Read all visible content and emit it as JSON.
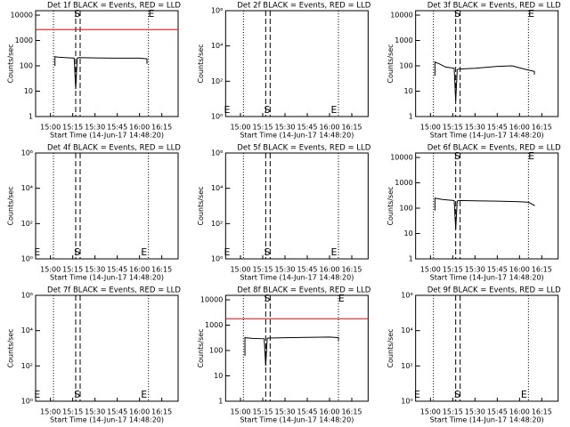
{
  "chart_data": [
    {
      "type": "line",
      "title": "Det 1f BLACK = Events, RED = LLD",
      "xlabel": "Start Time (14-Jun-17 14:48:20)",
      "ylabel": "Counts/sec",
      "xlim": [
        "14:50",
        "16:26"
      ],
      "xticks": [
        "15:00",
        "15:15",
        "15:30",
        "15:45",
        "16:00",
        "16:15"
      ],
      "ylim": [
        1,
        15000
      ],
      "yticks": [
        1,
        10,
        100,
        1000,
        10000
      ],
      "log_y": true,
      "dotted": [
        "15:02",
        "16:06"
      ],
      "dashed": [
        "15:17",
        "15:20"
      ],
      "annotations": [
        {
          "text": "S",
          "x": "15:18",
          "pos": "top"
        },
        {
          "text": "E",
          "x": "16:08",
          "pos": "top"
        }
      ],
      "series": [
        {
          "color": "#000000",
          "x": [
            "15:03",
            "15:03",
            "15:05",
            "15:10",
            "15:16",
            "15:17",
            "15:18",
            "15:19",
            "15:30",
            "15:45",
            "16:00",
            "16:05",
            "16:05"
          ],
          "values": [
            100,
            230,
            220,
            210,
            200,
            12,
            200,
            210,
            205,
            200,
            200,
            190,
            120
          ]
        },
        {
          "color": "#ff0000",
          "x": [
            "14:50",
            "16:26"
          ],
          "values": [
            2700,
            2700
          ]
        }
      ]
    },
    {
      "type": "line",
      "title": "Det 2f BLACK = Events, RED = LLD",
      "xlabel": "Start Time (14-Jun-17 14:48:20)",
      "ylabel": "Counts/sec",
      "xlim": [
        "14:50",
        "16:26"
      ],
      "xticks": [
        "15:00",
        "15:15",
        "15:30",
        "15:45",
        "16:00",
        "16:15"
      ],
      "ylim": [
        1,
        1000000
      ],
      "yticks": [
        {
          "value": 1,
          "label": "10⁰"
        },
        {
          "value": 100,
          "label": "10²"
        },
        {
          "value": 10000,
          "label": "10⁴"
        },
        {
          "value": 1000000,
          "label": "10⁶"
        }
      ],
      "log_y": true,
      "dotted": [
        "15:02",
        "16:06"
      ],
      "dashed": [
        "15:17",
        "15:20"
      ],
      "annotations": [
        {
          "text": "E",
          "x": "14:51",
          "pos": "bottom"
        },
        {
          "text": "S",
          "x": "15:18",
          "pos": "bottom"
        },
        {
          "text": "E",
          "x": "16:03",
          "pos": "bottom"
        }
      ],
      "series": []
    },
    {
      "type": "line",
      "title": "Det 3f BLACK = Events, RED = LLD",
      "xlabel": "Start Time (14-Jun-17 14:48:20)",
      "ylabel": "Counts/sec",
      "xlim": [
        "14:50",
        "16:26"
      ],
      "xticks": [
        "15:00",
        "15:15",
        "15:30",
        "15:45",
        "16:00",
        "16:15"
      ],
      "ylim": [
        1,
        15000
      ],
      "yticks": [
        1,
        10,
        100,
        1000,
        10000
      ],
      "log_y": true,
      "dotted": [
        "15:02",
        "16:06"
      ],
      "dashed": [
        "15:17",
        "15:20"
      ],
      "annotations": [
        {
          "text": "S",
          "x": "15:18",
          "pos": "top"
        },
        {
          "text": "E",
          "x": "16:08",
          "pos": "top"
        }
      ],
      "series": [
        {
          "color": "#000000",
          "x": [
            "15:03",
            "15:03",
            "15:06",
            "15:10",
            "15:16",
            "15:17",
            "15:18",
            "15:19",
            "15:30",
            "15:45",
            "15:55",
            "16:05",
            "16:10",
            "16:10"
          ],
          "values": [
            40,
            140,
            120,
            90,
            80,
            4,
            70,
            75,
            80,
            95,
            100,
            70,
            60,
            45
          ]
        }
      ]
    },
    {
      "type": "line",
      "title": "Det 4f BLACK = Events, RED = LLD",
      "xlabel": "Start Time (14-Jun-17 14:48:20)",
      "ylabel": "Counts/sec",
      "xlim": [
        "14:50",
        "16:26"
      ],
      "xticks": [
        "15:00",
        "15:15",
        "15:30",
        "15:45",
        "16:00",
        "16:15"
      ],
      "ylim": [
        1,
        1000000
      ],
      "yticks": [
        {
          "value": 1,
          "label": "10⁰"
        },
        {
          "value": 100,
          "label": "10²"
        },
        {
          "value": 10000,
          "label": "10⁴"
        },
        {
          "value": 1000000,
          "label": "10⁶"
        }
      ],
      "log_y": true,
      "dotted": [
        "15:02",
        "16:06"
      ],
      "dashed": [
        "15:17",
        "15:20"
      ],
      "annotations": [
        {
          "text": "E",
          "x": "14:51",
          "pos": "bottom"
        },
        {
          "text": "S",
          "x": "15:18",
          "pos": "bottom"
        },
        {
          "text": "E",
          "x": "16:03",
          "pos": "bottom"
        }
      ],
      "series": []
    },
    {
      "type": "line",
      "title": "Det 5f BLACK = Events, RED = LLD",
      "xlabel": "Start Time (14-Jun-17 14:48:20)",
      "ylabel": "Counts/sec",
      "xlim": [
        "14:50",
        "16:26"
      ],
      "xticks": [
        "15:00",
        "15:15",
        "15:30",
        "15:45",
        "16:00",
        "16:15"
      ],
      "ylim": [
        1,
        1000000
      ],
      "yticks": [
        {
          "value": 1,
          "label": "10⁰"
        },
        {
          "value": 100,
          "label": "10²"
        },
        {
          "value": 10000,
          "label": "10⁴"
        },
        {
          "value": 1000000,
          "label": "10⁶"
        }
      ],
      "log_y": true,
      "dotted": [
        "15:02",
        "16:06"
      ],
      "dashed": [
        "15:17",
        "15:20"
      ],
      "annotations": [
        {
          "text": "E",
          "x": "14:51",
          "pos": "bottom"
        },
        {
          "text": "S",
          "x": "15:18",
          "pos": "bottom"
        },
        {
          "text": "E",
          "x": "16:03",
          "pos": "bottom"
        }
      ],
      "series": []
    },
    {
      "type": "line",
      "title": "Det 6f BLACK = Events, RED = LLD",
      "xlabel": "Start Time (14-Jun-17 14:48:20)",
      "ylabel": "Counts/sec",
      "xlim": [
        "14:50",
        "16:26"
      ],
      "xticks": [
        "15:00",
        "15:15",
        "15:30",
        "15:45",
        "16:00",
        "16:15"
      ],
      "ylim": [
        1,
        15000
      ],
      "yticks": [
        1,
        10,
        100,
        1000,
        10000
      ],
      "log_y": true,
      "dotted": [
        "15:02",
        "16:06"
      ],
      "dashed": [
        "15:17",
        "15:20"
      ],
      "annotations": [
        {
          "text": "S",
          "x": "15:18",
          "pos": "top"
        },
        {
          "text": "E",
          "x": "16:08",
          "pos": "top"
        }
      ],
      "series": [
        {
          "color": "#000000",
          "x": [
            "15:03",
            "15:03",
            "15:08",
            "15:16",
            "15:17",
            "15:18",
            "15:19",
            "15:30",
            "15:45",
            "16:00",
            "16:06",
            "16:10",
            "16:10"
          ],
          "values": [
            80,
            250,
            220,
            200,
            15,
            190,
            200,
            195,
            190,
            180,
            170,
            130,
            120
          ]
        }
      ]
    },
    {
      "type": "line",
      "title": "Det 7f BLACK = Events, RED = LLD",
      "xlabel": "Start Time (14-Jun-17 14:48:20)",
      "ylabel": "Counts/sec",
      "xlim": [
        "14:50",
        "16:26"
      ],
      "xticks": [
        "15:00",
        "15:15",
        "15:30",
        "15:45",
        "16:00",
        "16:15"
      ],
      "ylim": [
        1,
        1000000
      ],
      "yticks": [
        {
          "value": 1,
          "label": "10⁰"
        },
        {
          "value": 100,
          "label": "10²"
        },
        {
          "value": 10000,
          "label": "10⁴"
        },
        {
          "value": 1000000,
          "label": "10⁶"
        }
      ],
      "log_y": true,
      "dotted": [
        "15:02",
        "16:06"
      ],
      "dashed": [
        "15:17",
        "15:20"
      ],
      "annotations": [
        {
          "text": "E",
          "x": "14:51",
          "pos": "bottom"
        },
        {
          "text": "S",
          "x": "15:18",
          "pos": "bottom"
        },
        {
          "text": "E",
          "x": "16:03",
          "pos": "bottom"
        }
      ],
      "series": []
    },
    {
      "type": "line",
      "title": "Det 8f BLACK = Events, RED = LLD",
      "xlabel": "Start Time (14-Jun-17 14:48:20)",
      "ylabel": "Counts/sec",
      "xlim": [
        "14:50",
        "16:26"
      ],
      "xticks": [
        "15:00",
        "15:15",
        "15:30",
        "15:45",
        "16:00",
        "16:15"
      ],
      "ylim": [
        1,
        15000
      ],
      "yticks": [
        1,
        10,
        100,
        1000,
        10000
      ],
      "log_y": true,
      "dotted": [
        "15:02",
        "16:06"
      ],
      "dashed": [
        "15:17",
        "15:20"
      ],
      "annotations": [
        {
          "text": "S",
          "x": "15:18",
          "pos": "top"
        },
        {
          "text": "E",
          "x": "16:08",
          "pos": "top"
        }
      ],
      "series": [
        {
          "color": "#000000",
          "x": [
            "15:03",
            "15:03",
            "15:08",
            "15:16",
            "15:17",
            "15:18",
            "15:19",
            "15:30",
            "15:45",
            "16:00",
            "16:06",
            "16:06"
          ],
          "values": [
            60,
            320,
            300,
            290,
            25,
            300,
            310,
            320,
            330,
            340,
            320,
            250
          ]
        },
        {
          "color": "#ff0000",
          "x": [
            "14:50",
            "16:26"
          ],
          "values": [
            1800,
            1800
          ]
        }
      ]
    },
    {
      "type": "line",
      "title": "Det 9f BLACK = Events, RED = LLD",
      "xlabel": "Start Time (14-Jun-17 14:48:20)",
      "ylabel": "Counts/sec",
      "xlim": [
        "14:50",
        "16:26"
      ],
      "xticks": [
        "15:00",
        "15:15",
        "15:30",
        "15:45",
        "16:00",
        "16:15"
      ],
      "ylim": [
        1,
        1000000
      ],
      "yticks": [
        {
          "value": 1,
          "label": "10⁰"
        },
        {
          "value": 100,
          "label": "10²"
        },
        {
          "value": 10000,
          "label": "10⁴"
        },
        {
          "value": 1000000,
          "label": "10⁶"
        }
      ],
      "log_y": true,
      "dotted": [
        "15:02",
        "16:06"
      ],
      "dashed": [
        "15:17",
        "15:20"
      ],
      "annotations": [
        {
          "text": "E",
          "x": "14:51",
          "pos": "bottom"
        },
        {
          "text": "S",
          "x": "15:18",
          "pos": "bottom"
        },
        {
          "text": "E",
          "x": "16:03",
          "pos": "bottom"
        }
      ],
      "series": []
    }
  ]
}
